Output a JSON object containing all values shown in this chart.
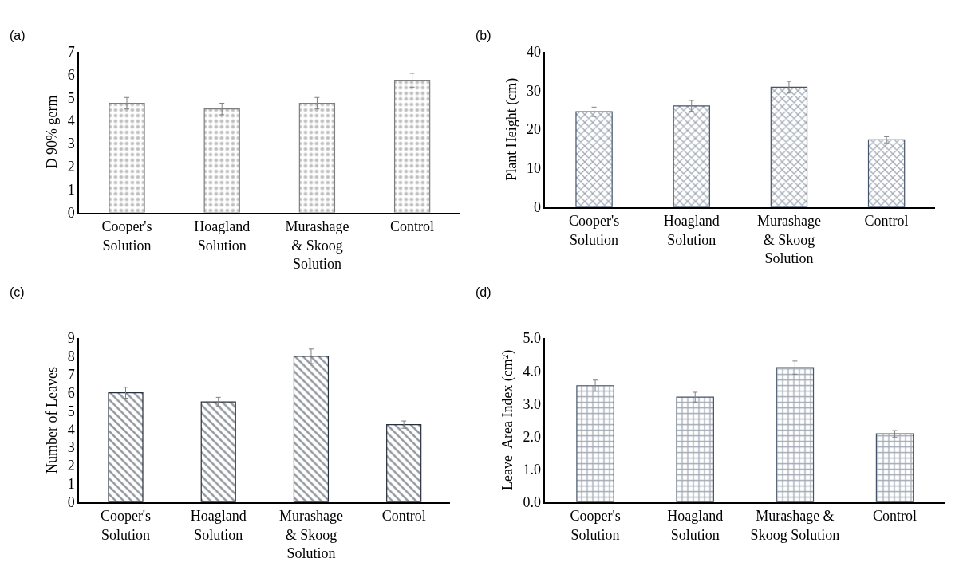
{
  "chart_data": [
    {
      "type": "bar",
      "title": "(a)",
      "ylabel": "D 90% germ",
      "categories": [
        "Cooper's\nSolution",
        "Hoagland\nSolution",
        "Murashage\n& Skoog\nSolution",
        "Control"
      ],
      "values": [
        4.75,
        4.5,
        4.75,
        5.75
      ],
      "errors": [
        0.25,
        0.25,
        0.25,
        0.3
      ],
      "color": "#7f7f7f",
      "ylim": [
        0,
        7
      ],
      "yticks": [
        0,
        1,
        2,
        3,
        4,
        5,
        6,
        7
      ],
      "grid": false
    },
    {
      "type": "bar",
      "title": "(b)",
      "ylabel": "Plant Height (cm)",
      "categories": [
        "Cooper's\nSolution",
        "Hoagland\nSolution",
        "Murashage\n& Skoog\nSolution",
        "Control"
      ],
      "values": [
        24.5,
        26,
        30.8,
        17.3
      ],
      "errors": [
        1.2,
        1.4,
        1.5,
        0.8
      ],
      "color": "#44546a",
      "ylim": [
        0,
        40
      ],
      "yticks": [
        0,
        10,
        20,
        30,
        40
      ],
      "grid": false
    },
    {
      "type": "bar",
      "title": "(c)",
      "ylabel": "Number of Leaves",
      "categories": [
        "Cooper's\nSolution",
        "Hoagland\nSolution",
        "Murashage\n& Skoog\nSolution",
        "Control"
      ],
      "values": [
        6.0,
        5.5,
        8.0,
        4.25
      ],
      "errors": [
        0.3,
        0.25,
        0.4,
        0.2
      ],
      "color": "#262f3d",
      "ylim": [
        0,
        9
      ],
      "yticks": [
        0,
        1,
        2,
        3,
        4,
        5,
        6,
        7,
        8,
        9
      ],
      "grid": false
    },
    {
      "type": "bar",
      "title": "(d)",
      "ylabel": "Leave  Area Index (cm²)",
      "categories": [
        "Cooper's\nSolution",
        "Hoagland\nSolution",
        "Murashage &\nSkoog Solution",
        "Control"
      ],
      "values": [
        3.55,
        3.2,
        4.1,
        2.08
      ],
      "errors": [
        0.17,
        0.15,
        0.2,
        0.1
      ],
      "color": "#44546a",
      "ylim": [
        0,
        5
      ],
      "yticks": [
        {
          "value": 0,
          "label": "0.0"
        },
        {
          "value": 1,
          "label": "1.0"
        },
        {
          "value": 2,
          "label": "2.0"
        },
        {
          "value": 3,
          "label": "3.0"
        },
        {
          "value": 4,
          "label": "4.0"
        },
        {
          "value": 5,
          "label": "5.0"
        }
      ],
      "grid": false
    }
  ]
}
